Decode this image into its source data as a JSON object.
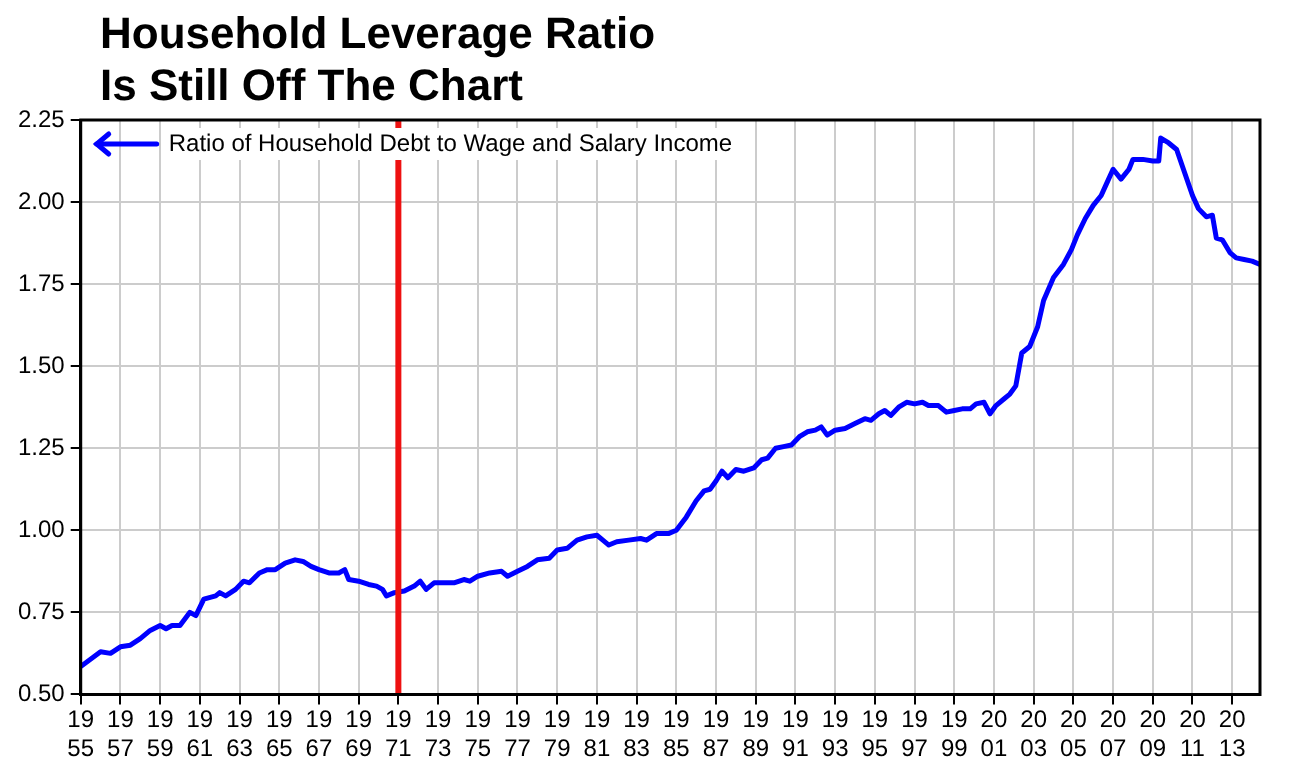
{
  "chart_data": {
    "type": "line",
    "title": "Household Leverage Ratio Is Still Off The Chart",
    "xlim": [
      1955,
      2014.4
    ],
    "xticks": [
      1955,
      1957,
      1959,
      1961,
      1963,
      1965,
      1967,
      1969,
      1971,
      1973,
      1975,
      1977,
      1979,
      1981,
      1983,
      1985,
      1987,
      1989,
      1991,
      1993,
      1995,
      1997,
      1999,
      2001,
      2003,
      2005,
      2007,
      2009,
      2011,
      2013
    ],
    "ylim": [
      0.5,
      2.25
    ],
    "yticks": [
      {
        "value": 0.5,
        "label": "0.50"
      },
      {
        "value": 0.75,
        "label": "0.75"
      },
      {
        "value": 1,
        "label": "1.00"
      },
      {
        "value": 1.25,
        "label": "1.25"
      },
      {
        "value": 1.5,
        "label": "1.50"
      },
      {
        "value": 1.75,
        "label": "1.75"
      },
      {
        "value": 2,
        "label": "2.00"
      },
      {
        "value": 2.25,
        "label": "2.25"
      }
    ],
    "grid": true,
    "legend": "top left",
    "marker": "none",
    "line_style": "solid",
    "ref_lines": [
      {
        "axis": "x",
        "value": 1971,
        "color": "#ee1111"
      }
    ],
    "series": [
      {
        "name": "Ratio of Household Debt to Wage and Salary Income",
        "color": "#0000ff",
        "x": [
          1955,
          1956,
          1956.5,
          1957,
          1957.5,
          1958,
          1958.5,
          1959,
          1959.3,
          1959.6,
          1960,
          1960.5,
          1960.8,
          1961.2,
          1961.8,
          1962,
          1962.3,
          1962.8,
          1963.2,
          1963.5,
          1964,
          1964.4,
          1964.8,
          1965.3,
          1965.8,
          1966.2,
          1966.6,
          1967,
          1967.5,
          1968,
          1968.3,
          1968.5,
          1969,
          1969.5,
          1969.9,
          1970.2,
          1970.4,
          1970.8,
          1971.3,
          1971.8,
          1972.1,
          1972.4,
          1972.8,
          1973.3,
          1973.8,
          1974.3,
          1974.6,
          1975,
          1975.6,
          1976.2,
          1976.5,
          1977,
          1977.5,
          1978,
          1978.6,
          1979,
          1979.5,
          1980,
          1980.5,
          1981,
          1981.3,
          1981.6,
          1982,
          1982.6,
          1983.2,
          1983.5,
          1984,
          1984.6,
          1985,
          1985.5,
          1986,
          1986.4,
          1986.7,
          1987,
          1987.3,
          1987.6,
          1988,
          1988.4,
          1988.9,
          1989.3,
          1989.6,
          1990,
          1990.4,
          1990.8,
          1991.2,
          1991.6,
          1992,
          1992.3,
          1992.6,
          1993,
          1993.5,
          1994,
          1994.5,
          1994.8,
          1995.2,
          1995.5,
          1995.8,
          1996.2,
          1996.6,
          1997,
          1997.4,
          1997.7,
          1998.2,
          1998.6,
          1999,
          1999.4,
          1999.8,
          2000.1,
          2000.5,
          2000.8,
          2001.1,
          2001.5,
          2001.8,
          2002.1,
          2002.4,
          2002.8,
          2003.2,
          2003.5,
          2004,
          2004.5,
          2004.9,
          2005.2,
          2005.6,
          2006,
          2006.4,
          2006.7,
          2007,
          2007.4,
          2007.8,
          2008,
          2008.5,
          2009,
          2009.3,
          2009.4,
          2009.8,
          2010.2,
          2010.6,
          2011,
          2011.3,
          2011.7,
          2012,
          2012.2,
          2012.5,
          2012.9,
          2013.2,
          2013.6,
          2014,
          2014.4
        ],
        "values": [
          0.585,
          0.63,
          0.625,
          0.645,
          0.65,
          0.67,
          0.695,
          0.71,
          0.7,
          0.71,
          0.71,
          0.75,
          0.74,
          0.79,
          0.8,
          0.81,
          0.8,
          0.82,
          0.845,
          0.84,
          0.87,
          0.88,
          0.88,
          0.9,
          0.91,
          0.905,
          0.89,
          0.88,
          0.87,
          0.87,
          0.88,
          0.85,
          0.845,
          0.835,
          0.83,
          0.82,
          0.8,
          0.81,
          0.815,
          0.83,
          0.845,
          0.82,
          0.84,
          0.84,
          0.84,
          0.85,
          0.845,
          0.86,
          0.87,
          0.875,
          0.86,
          0.875,
          0.89,
          0.91,
          0.915,
          0.94,
          0.945,
          0.97,
          0.98,
          0.985,
          0.97,
          0.955,
          0.965,
          0.97,
          0.975,
          0.97,
          0.99,
          0.99,
          1.0,
          1.04,
          1.09,
          1.12,
          1.125,
          1.15,
          1.18,
          1.16,
          1.185,
          1.18,
          1.19,
          1.215,
          1.22,
          1.25,
          1.255,
          1.26,
          1.285,
          1.3,
          1.305,
          1.315,
          1.29,
          1.305,
          1.31,
          1.325,
          1.34,
          1.335,
          1.355,
          1.365,
          1.35,
          1.375,
          1.39,
          1.385,
          1.39,
          1.38,
          1.38,
          1.36,
          1.365,
          1.37,
          1.37,
          1.385,
          1.39,
          1.355,
          1.38,
          1.4,
          1.415,
          1.44,
          1.54,
          1.56,
          1.62,
          1.7,
          1.77,
          1.81,
          1.855,
          1.9,
          1.95,
          1.99,
          2.02,
          2.06,
          2.1,
          2.07,
          2.1,
          2.13,
          2.13,
          2.125,
          2.125,
          2.195,
          2.18,
          2.16,
          2.09,
          2.02,
          1.98,
          1.955,
          1.96,
          1.89,
          1.885,
          1.845,
          1.83,
          1.825,
          1.82,
          1.81
        ]
      }
    ]
  }
}
